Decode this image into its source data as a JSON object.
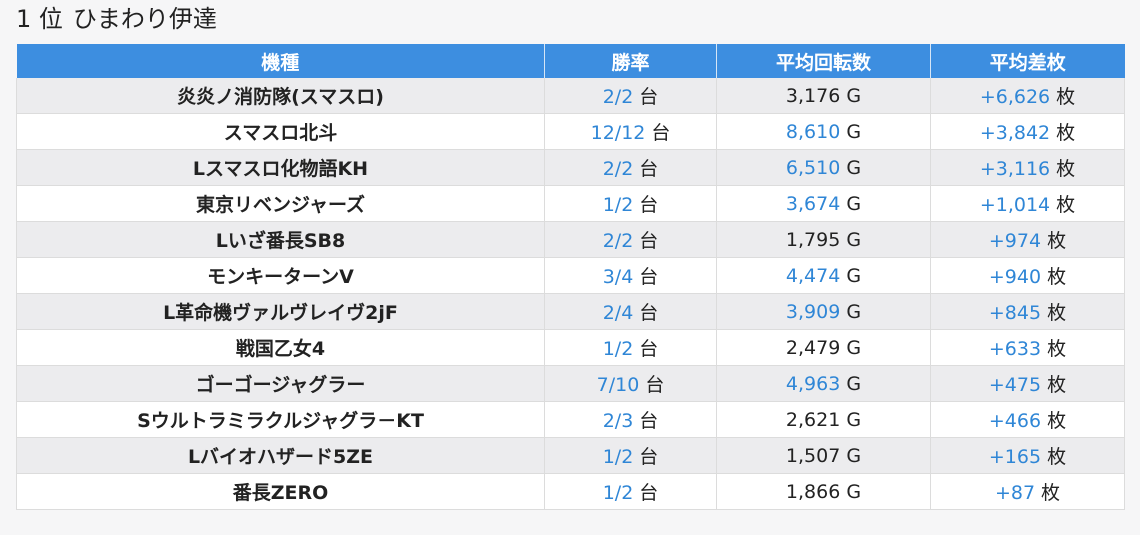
{
  "title": {
    "rank": "1 位",
    "store": "ひまわり伊達"
  },
  "headers": [
    "機種",
    "勝率",
    "平均回転数",
    "平均差枚"
  ],
  "units": {
    "win": "台",
    "spins": "G",
    "diff": "枚"
  },
  "colors": {
    "header_bg": "#3d8ee0",
    "accent": "#2f86d6",
    "row_alt": "#ececee"
  },
  "rows": [
    {
      "machine": "炎炎ノ消防隊(スマスロ)",
      "win_rate": "2/2",
      "avg_spins": "3,176",
      "spins_highlight": false,
      "avg_diff": "+6,626"
    },
    {
      "machine": "スマスロ北斗",
      "win_rate": "12/12",
      "avg_spins": "8,610",
      "spins_highlight": true,
      "avg_diff": "+3,842"
    },
    {
      "machine": "Lスマスロ化物語KH",
      "win_rate": "2/2",
      "avg_spins": "6,510",
      "spins_highlight": true,
      "avg_diff": "+3,116"
    },
    {
      "machine": "東京リベンジャーズ",
      "win_rate": "1/2",
      "avg_spins": "3,674",
      "spins_highlight": true,
      "avg_diff": "+1,014"
    },
    {
      "machine": "Lいざ番長SB8",
      "win_rate": "2/2",
      "avg_spins": "1,795",
      "spins_highlight": false,
      "avg_diff": "+974"
    },
    {
      "machine": "モンキーターンV",
      "win_rate": "3/4",
      "avg_spins": "4,474",
      "spins_highlight": true,
      "avg_diff": "+940"
    },
    {
      "machine": "L革命機ヴァルヴレイヴ2jF",
      "win_rate": "2/4",
      "avg_spins": "3,909",
      "spins_highlight": true,
      "avg_diff": "+845"
    },
    {
      "machine": "戦国乙女4",
      "win_rate": "1/2",
      "avg_spins": "2,479",
      "spins_highlight": false,
      "avg_diff": "+633"
    },
    {
      "machine": "ゴーゴージャグラー",
      "win_rate": "7/10",
      "avg_spins": "4,963",
      "spins_highlight": true,
      "avg_diff": "+475"
    },
    {
      "machine": "Sウルトラミラクルジャグラ－KT",
      "win_rate": "2/3",
      "avg_spins": "2,621",
      "spins_highlight": false,
      "avg_diff": "+466"
    },
    {
      "machine": "Lバイオハザード5ZE",
      "win_rate": "1/2",
      "avg_spins": "1,507",
      "spins_highlight": false,
      "avg_diff": "+165"
    },
    {
      "machine": "番長ZERO",
      "win_rate": "1/2",
      "avg_spins": "1,866",
      "spins_highlight": false,
      "avg_diff": "+87"
    }
  ]
}
